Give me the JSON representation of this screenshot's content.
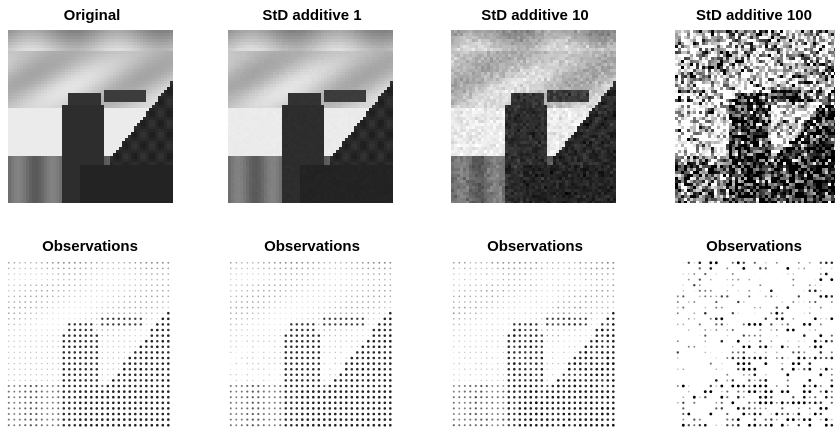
{
  "figure": {
    "top_row_titles": [
      "Original",
      "StD additive 1",
      "StD additive 10",
      "StD additive 100"
    ],
    "bottom_row_titles": [
      "Observations",
      "Observations",
      "Observations",
      "Observations"
    ],
    "noise_std": [
      0,
      1,
      10,
      100
    ],
    "colors": {
      "background": "#ffffff",
      "ink": "#000000",
      "sky": "#d8d8d8",
      "building": "#2a2a2a"
    }
  }
}
